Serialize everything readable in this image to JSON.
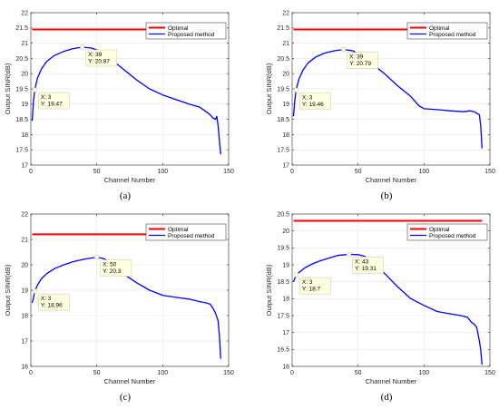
{
  "chart_data": [
    {
      "type": "line",
      "panel_label": "(a)",
      "xlabel": "Channel Number",
      "ylabel": "Output SINR(dB)",
      "xlim": [
        0,
        150
      ],
      "ylim": [
        17,
        22
      ],
      "xticks": [
        0,
        50,
        100,
        150
      ],
      "yticks": [
        17,
        17.5,
        18,
        18.5,
        19,
        19.5,
        20,
        20.5,
        21,
        21.5,
        22
      ],
      "grid": true,
      "legend": [
        "Optimal",
        "Proposed method"
      ],
      "legend_position": "top-right",
      "series": [
        {
          "name": "Optimal",
          "color": "#ff0000",
          "x": [
            1,
            144
          ],
          "y": [
            21.45,
            21.45
          ]
        },
        {
          "name": "Proposed method",
          "color": "#0000ff",
          "x": [
            1,
            2,
            3,
            5,
            8,
            12,
            18,
            25,
            32,
            39,
            46,
            52,
            60,
            70,
            80,
            90,
            100,
            110,
            120,
            128,
            133,
            136,
            138,
            140,
            141,
            142,
            143,
            144
          ],
          "y": [
            18.45,
            19.1,
            19.47,
            19.85,
            20.15,
            20.4,
            20.6,
            20.73,
            20.82,
            20.87,
            20.84,
            20.75,
            20.5,
            20.15,
            19.8,
            19.5,
            19.3,
            19.15,
            19.0,
            18.9,
            18.75,
            18.65,
            18.55,
            18.5,
            18.6,
            18.3,
            17.8,
            17.35
          ]
        }
      ],
      "datatips": [
        {
          "x": 3,
          "y": 19.47,
          "label_x": "X: 3",
          "label_y": "Y: 19.47"
        },
        {
          "x": 39,
          "y": 20.87,
          "label_x": "X: 39",
          "label_y": "Y: 20.87"
        }
      ]
    },
    {
      "type": "line",
      "panel_label": "(b)",
      "xlabel": "Channel Number",
      "ylabel": "Output SINR(dB)",
      "xlim": [
        0,
        150
      ],
      "ylim": [
        17,
        22
      ],
      "xticks": [
        0,
        50,
        100,
        150
      ],
      "yticks": [
        17,
        17.5,
        18,
        18.5,
        19,
        19.5,
        20,
        20.5,
        21,
        21.5,
        22
      ],
      "grid": true,
      "legend": [
        "Optimal",
        "Proposed method"
      ],
      "legend_position": "top-right",
      "series": [
        {
          "name": "Optimal",
          "color": "#ff0000",
          "x": [
            1,
            144
          ],
          "y": [
            21.45,
            21.45
          ]
        },
        {
          "name": "Proposed method",
          "color": "#0000ff",
          "x": [
            1,
            2,
            3,
            5,
            8,
            12,
            18,
            25,
            32,
            39,
            46,
            52,
            60,
            70,
            80,
            90,
            96,
            100,
            110,
            120,
            130,
            135,
            138,
            140,
            142,
            143,
            144
          ],
          "y": [
            18.6,
            19.1,
            19.46,
            19.8,
            20.1,
            20.35,
            20.55,
            20.68,
            20.75,
            20.79,
            20.75,
            20.6,
            20.35,
            20.0,
            19.6,
            19.25,
            18.95,
            18.85,
            18.82,
            18.78,
            18.75,
            18.78,
            18.75,
            18.7,
            18.65,
            18.3,
            17.55
          ]
        }
      ],
      "datatips": [
        {
          "x": 3,
          "y": 19.46,
          "label_x": "X: 3",
          "label_y": "Y: 19.46"
        },
        {
          "x": 39,
          "y": 20.79,
          "label_x": "X: 39",
          "label_y": "Y: 20.79"
        }
      ]
    },
    {
      "type": "line",
      "panel_label": "(c)",
      "xlabel": "Channel Number",
      "ylabel": "Output SINR(dB)",
      "xlim": [
        0,
        150
      ],
      "ylim": [
        16,
        22
      ],
      "xticks": [
        0,
        50,
        100,
        150
      ],
      "yticks": [
        16,
        17,
        18,
        19,
        20,
        21,
        22
      ],
      "grid": true,
      "legend": [
        "Optimal",
        "Proposed method"
      ],
      "legend_position": "top-right",
      "series": [
        {
          "name": "Optimal",
          "color": "#ff0000",
          "x": [
            1,
            144
          ],
          "y": [
            21.2,
            21.2
          ]
        },
        {
          "name": "Proposed method",
          "color": "#0000ff",
          "x": [
            1,
            2,
            3,
            5,
            8,
            12,
            18,
            25,
            32,
            40,
            45,
            50,
            55,
            60,
            70,
            80,
            90,
            100,
            110,
            120,
            128,
            133,
            136,
            138,
            140,
            142,
            143,
            144
          ],
          "y": [
            18.5,
            18.7,
            18.96,
            19.2,
            19.45,
            19.65,
            19.85,
            20.0,
            20.12,
            20.22,
            20.26,
            20.3,
            20.25,
            20.1,
            19.65,
            19.3,
            19.0,
            18.8,
            18.72,
            18.65,
            18.55,
            18.5,
            18.45,
            18.3,
            18.1,
            17.8,
            17.2,
            16.3
          ]
        }
      ],
      "datatips": [
        {
          "x": 3,
          "y": 18.96,
          "label_x": "X: 3",
          "label_y": "Y: 18.96"
        },
        {
          "x": 50,
          "y": 20.3,
          "label_x": "X: 50",
          "label_y": "Y: 20.3"
        }
      ]
    },
    {
      "type": "line",
      "panel_label": "(d)",
      "xlabel": "Channel Number",
      "ylabel": "Output SINR(dB)",
      "xlim": [
        0,
        150
      ],
      "ylim": [
        16,
        20.5
      ],
      "xticks": [
        0,
        50,
        100,
        150
      ],
      "yticks": [
        16,
        16.5,
        17,
        17.5,
        18,
        18.5,
        19,
        19.5,
        20,
        20.5
      ],
      "grid": true,
      "legend": [
        "Optimal",
        "Proposed method"
      ],
      "legend_position": "top-right",
      "series": [
        {
          "name": "Optimal",
          "color": "#ff0000",
          "x": [
            1,
            144
          ],
          "y": [
            20.3,
            20.3
          ]
        },
        {
          "name": "Proposed method",
          "color": "#0000ff",
          "x": [
            1,
            2,
            3,
            6,
            10,
            15,
            20,
            28,
            35,
            43,
            50,
            55,
            60,
            70,
            80,
            90,
            100,
            110,
            120,
            128,
            133,
            136,
            138,
            140,
            141,
            142,
            143,
            144
          ],
          "y": [
            18.5,
            18.6,
            18.7,
            18.8,
            18.92,
            19.02,
            19.1,
            19.2,
            19.28,
            19.31,
            19.3,
            19.25,
            19.1,
            18.75,
            18.35,
            18.0,
            17.8,
            17.62,
            17.55,
            17.5,
            17.45,
            17.3,
            17.25,
            17.15,
            16.95,
            16.75,
            16.5,
            16.05
          ]
        }
      ],
      "datatips": [
        {
          "x": 3,
          "y": 18.7,
          "label_x": "X: 3",
          "label_y": "Y: 18.7"
        },
        {
          "x": 43,
          "y": 19.31,
          "label_x": "X: 43",
          "label_y": "Y: 19.31"
        }
      ]
    }
  ]
}
